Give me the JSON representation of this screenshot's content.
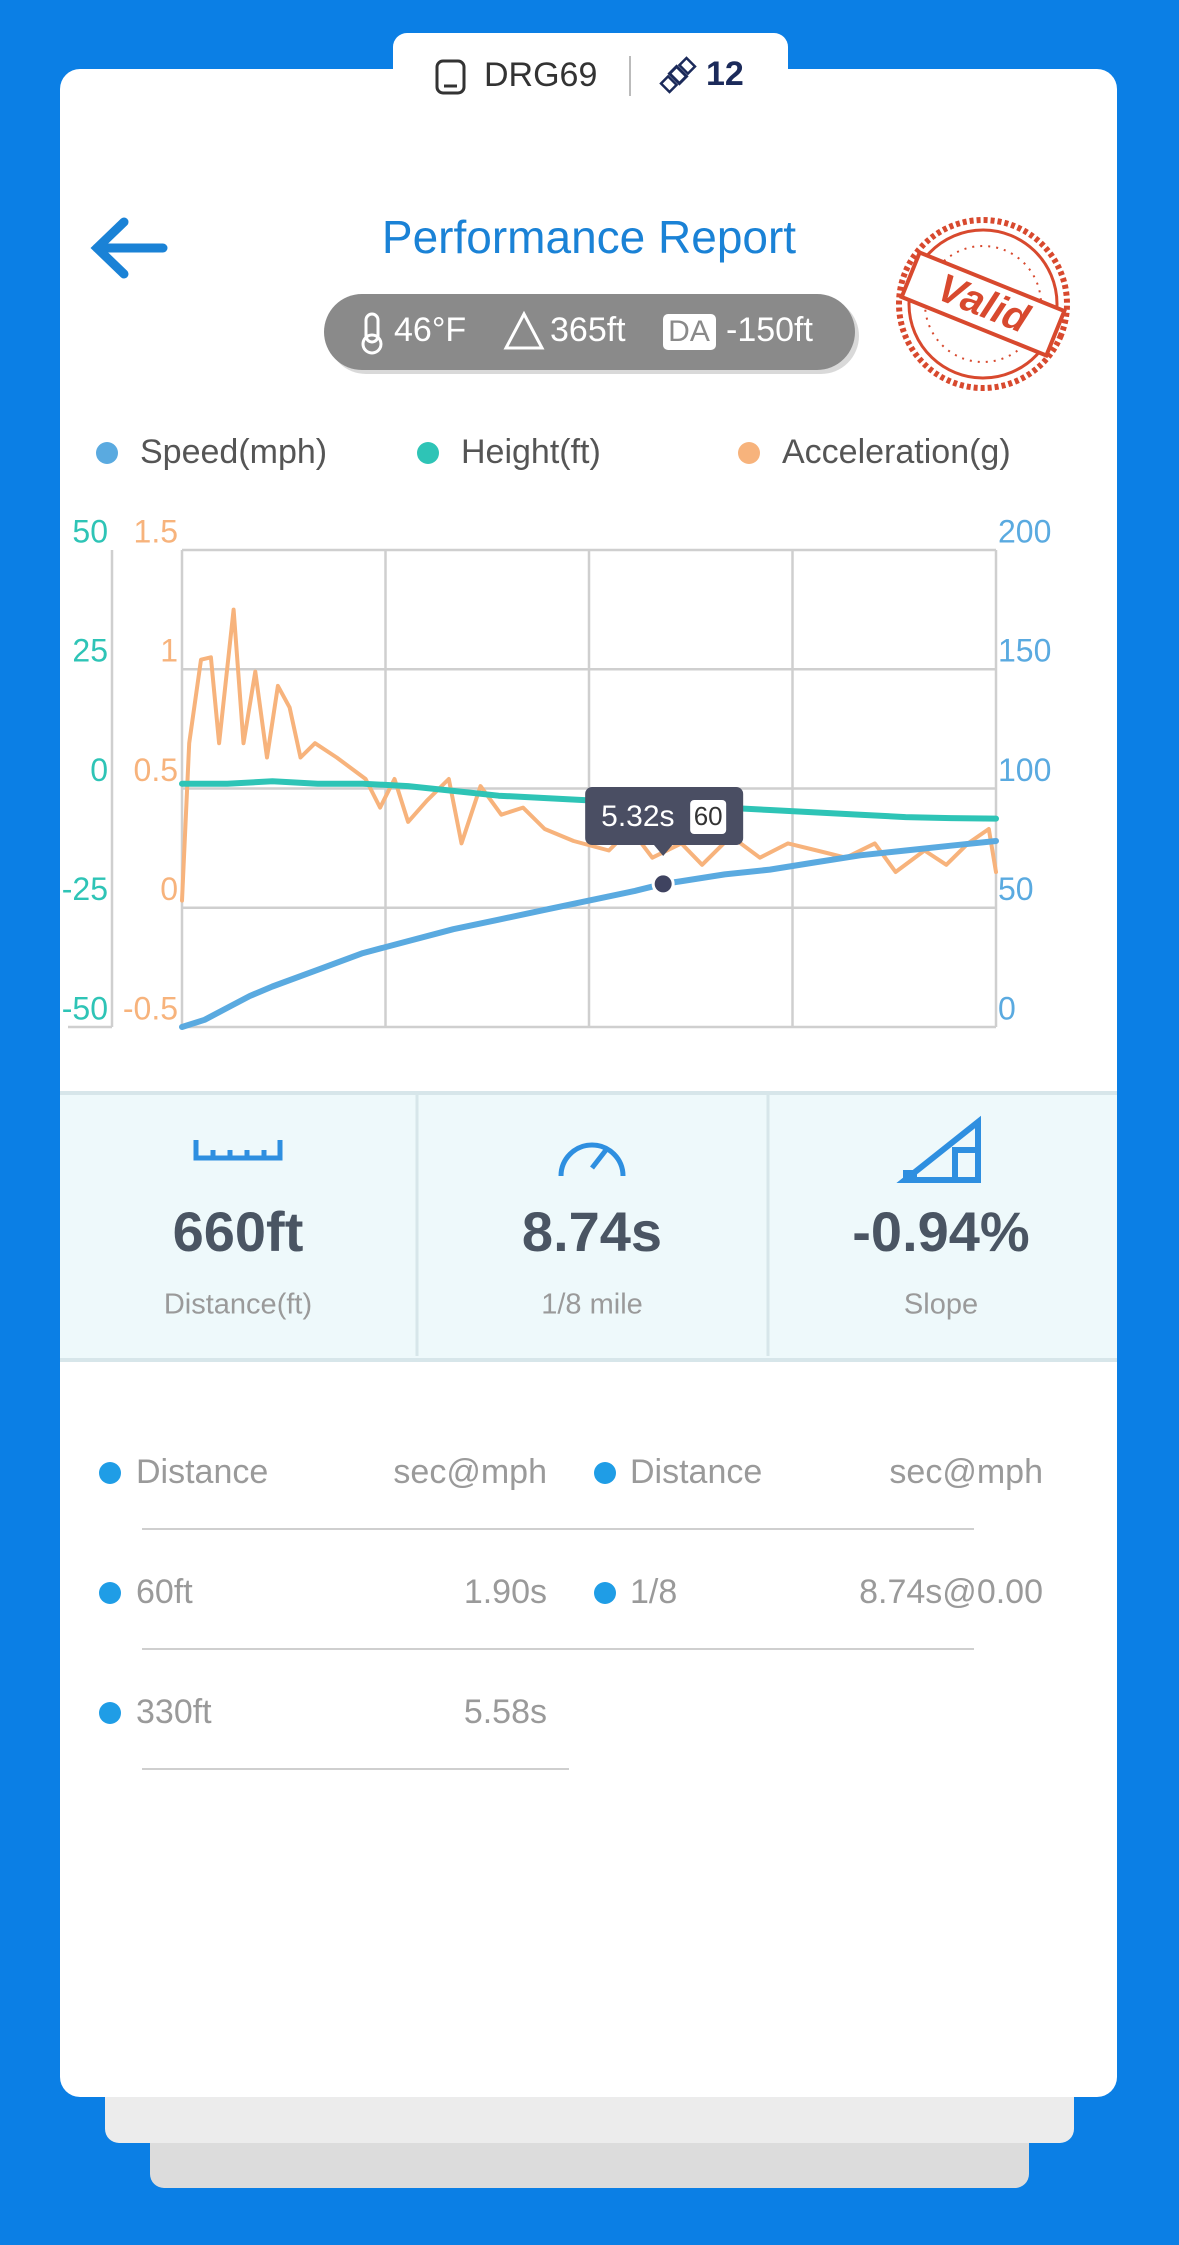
{
  "header": {
    "device": "DRG69",
    "count": 12
  },
  "title": "Performance Report",
  "conditions": {
    "temperature": "46°F",
    "altitude": "365ft",
    "da_label": "DA",
    "density_altitude": "-150ft"
  },
  "stamp": "Valid",
  "chart_data": {
    "type": "line",
    "xlim": [
      0,
      9
    ],
    "xticks": [
      0,
      2.25,
      4.5,
      6.75,
      9
    ],
    "ylim": [
      0,
      200
    ],
    "yticks": [
      0,
      50,
      100,
      150,
      200
    ],
    "y2lim": [
      -50,
      50
    ],
    "y2ticks": [
      -50,
      -25,
      0,
      25,
      50
    ],
    "y3lim": [
      -0.5,
      1.5
    ],
    "y3ticks": [
      -0.5,
      0,
      0.5,
      1,
      1.5
    ],
    "grid": true,
    "series": [
      {
        "name": "Speed(mph)",
        "color": "#5aaae0",
        "axis": "y",
        "x": [
          0,
          0.25,
          0.5,
          0.75,
          1,
          1.5,
          2,
          2.5,
          3,
          3.5,
          4,
          4.5,
          5,
          5.32,
          5.5,
          6,
          6.5,
          7,
          7.5,
          8,
          8.5,
          9
        ],
        "values": [
          0,
          3,
          8,
          13,
          17,
          24,
          31,
          36,
          41,
          45,
          49,
          53,
          57,
          60,
          61,
          64,
          66,
          69,
          72,
          74,
          76,
          78
        ]
      },
      {
        "name": "Height(ft)",
        "color": "#2ec4b6",
        "axis": "y2",
        "x": [
          0,
          0.5,
          1,
          1.5,
          2,
          2.5,
          3,
          3.5,
          4,
          4.5,
          5,
          5.5,
          6,
          6.5,
          7,
          7.5,
          8,
          8.5,
          9
        ],
        "values": [
          1,
          1,
          1.5,
          1,
          1,
          0.5,
          -0.5,
          -1.5,
          -2,
          -2.5,
          -3,
          -3.5,
          -4,
          -4.5,
          -5,
          -5.5,
          -6,
          -6.2,
          -6.3
        ]
      },
      {
        "name": "Acceleration(g)",
        "color": "#f7b37c",
        "axis": "y3",
        "x": [
          0,
          0.08,
          0.21,
          0.32,
          0.41,
          0.57,
          0.68,
          0.81,
          0.94,
          1.06,
          1.19,
          1.31,
          1.47,
          1.71,
          2.03,
          2.19,
          2.35,
          2.5,
          2.71,
          2.95,
          3.09,
          3.3,
          3.53,
          3.77,
          4.01,
          4.33,
          4.72,
          4.96,
          5.2,
          5.52,
          5.75,
          6.07,
          6.39,
          6.7,
          7.02,
          7.34,
          7.66,
          7.89,
          8.21,
          8.45,
          8.69,
          8.92,
          9
        ],
        "values": [
          0.03,
          0.69,
          1.04,
          1.05,
          0.69,
          1.25,
          0.69,
          0.99,
          0.63,
          0.93,
          0.84,
          0.63,
          0.69,
          0.63,
          0.54,
          0.42,
          0.54,
          0.36,
          0.45,
          0.54,
          0.27,
          0.51,
          0.39,
          0.42,
          0.33,
          0.28,
          0.24,
          0.33,
          0.21,
          0.27,
          0.18,
          0.3,
          0.21,
          0.27,
          0.24,
          0.21,
          0.27,
          0.15,
          0.24,
          0.18,
          0.27,
          0.33,
          0.15
        ]
      }
    ],
    "tooltip": {
      "time": {
        "value": 5.32,
        "label": "5.32s"
      },
      "speed": 60
    }
  },
  "stats": [
    {
      "value": "660ft",
      "label": "Distance(ft)"
    },
    {
      "value": "8.74s",
      "label": "1/8 mile"
    },
    {
      "value": "-0.94%",
      "label": "Slope"
    }
  ],
  "splits": {
    "columns": [
      "Distance",
      "sec@mph",
      "Distance",
      "sec@mph"
    ],
    "rows": [
      [
        "60ft",
        "1.90s",
        "1/8",
        "8.74s@0.00"
      ],
      [
        "330ft",
        "5.58s"
      ]
    ]
  }
}
